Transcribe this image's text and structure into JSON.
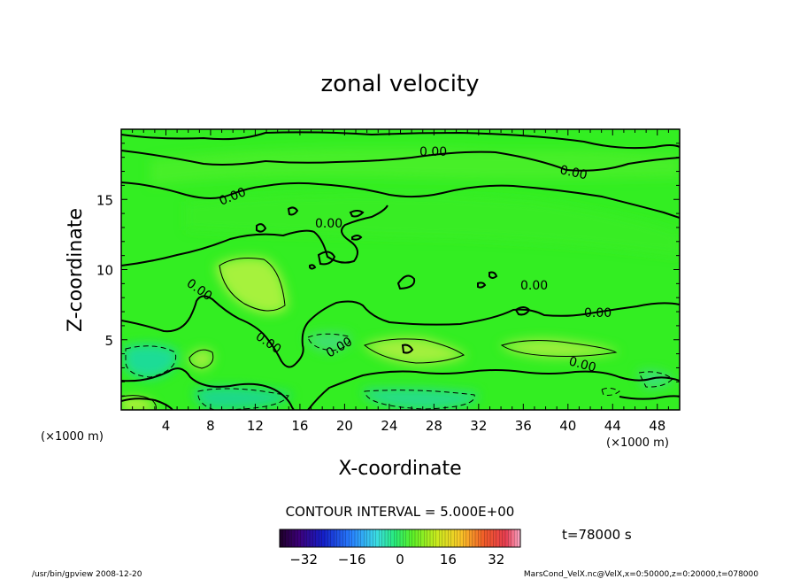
{
  "chart_data": {
    "type": "heatmap",
    "title": "zonal velocity",
    "xlabel": "X-coordinate",
    "ylabel": "Z-coordinate",
    "x_unit": "(×1000 m)",
    "y_unit": "(×1000 m)",
    "xlim": [
      0,
      50
    ],
    "ylim": [
      0,
      20
    ],
    "x_ticks": [
      "4",
      "8",
      "12",
      "16",
      "20",
      "24",
      "28",
      "32",
      "36",
      "40",
      "44",
      "48"
    ],
    "y_ticks": [
      "5",
      "10",
      "15"
    ],
    "contour_interval_text": "CONTOUR INTERVAL = 5.000E+00",
    "contour_labels": [
      "0.00",
      "0.00",
      "0.00",
      "0.00",
      "0.00",
      "0.00",
      "0.00",
      "0.00",
      "0.00"
    ],
    "time_text": "t=78000 s",
    "colorbar": {
      "range": [
        -40,
        40
      ],
      "ticks": [
        "−32",
        "−16",
        "0",
        "16",
        "32"
      ]
    },
    "field_description_values": {
      "background": 0,
      "positive_cores": [
        {
          "x": 10.5,
          "z": 9.5,
          "value": 5
        },
        {
          "x": 26,
          "z": 4.2,
          "value": 5
        },
        {
          "x": 36.5,
          "z": 4.3,
          "value": 5
        },
        {
          "x": 6.5,
          "z": 3.8,
          "value": 5
        },
        {
          "x": 0.8,
          "z": 0.4,
          "value": 10
        }
      ],
      "negative_cores": [
        {
          "x": 2.5,
          "z": 3.5,
          "value": -5
        },
        {
          "x": 12.5,
          "z": 0.8,
          "value": -5
        },
        {
          "x": 25,
          "z": 1.0,
          "value": -5
        },
        {
          "x": 18.5,
          "z": 5.0,
          "value": -5
        }
      ]
    }
  },
  "footer": {
    "left": "/usr/bin/gpview  2008-12-20",
    "right": "MarsCond_VelX.nc@VelX,x=0:50000,z=0:20000,t=078000"
  },
  "colors": {
    "field_base": "#33ee22",
    "positive": "#a8f040",
    "negative": "#20e090",
    "contour": "#000000"
  }
}
